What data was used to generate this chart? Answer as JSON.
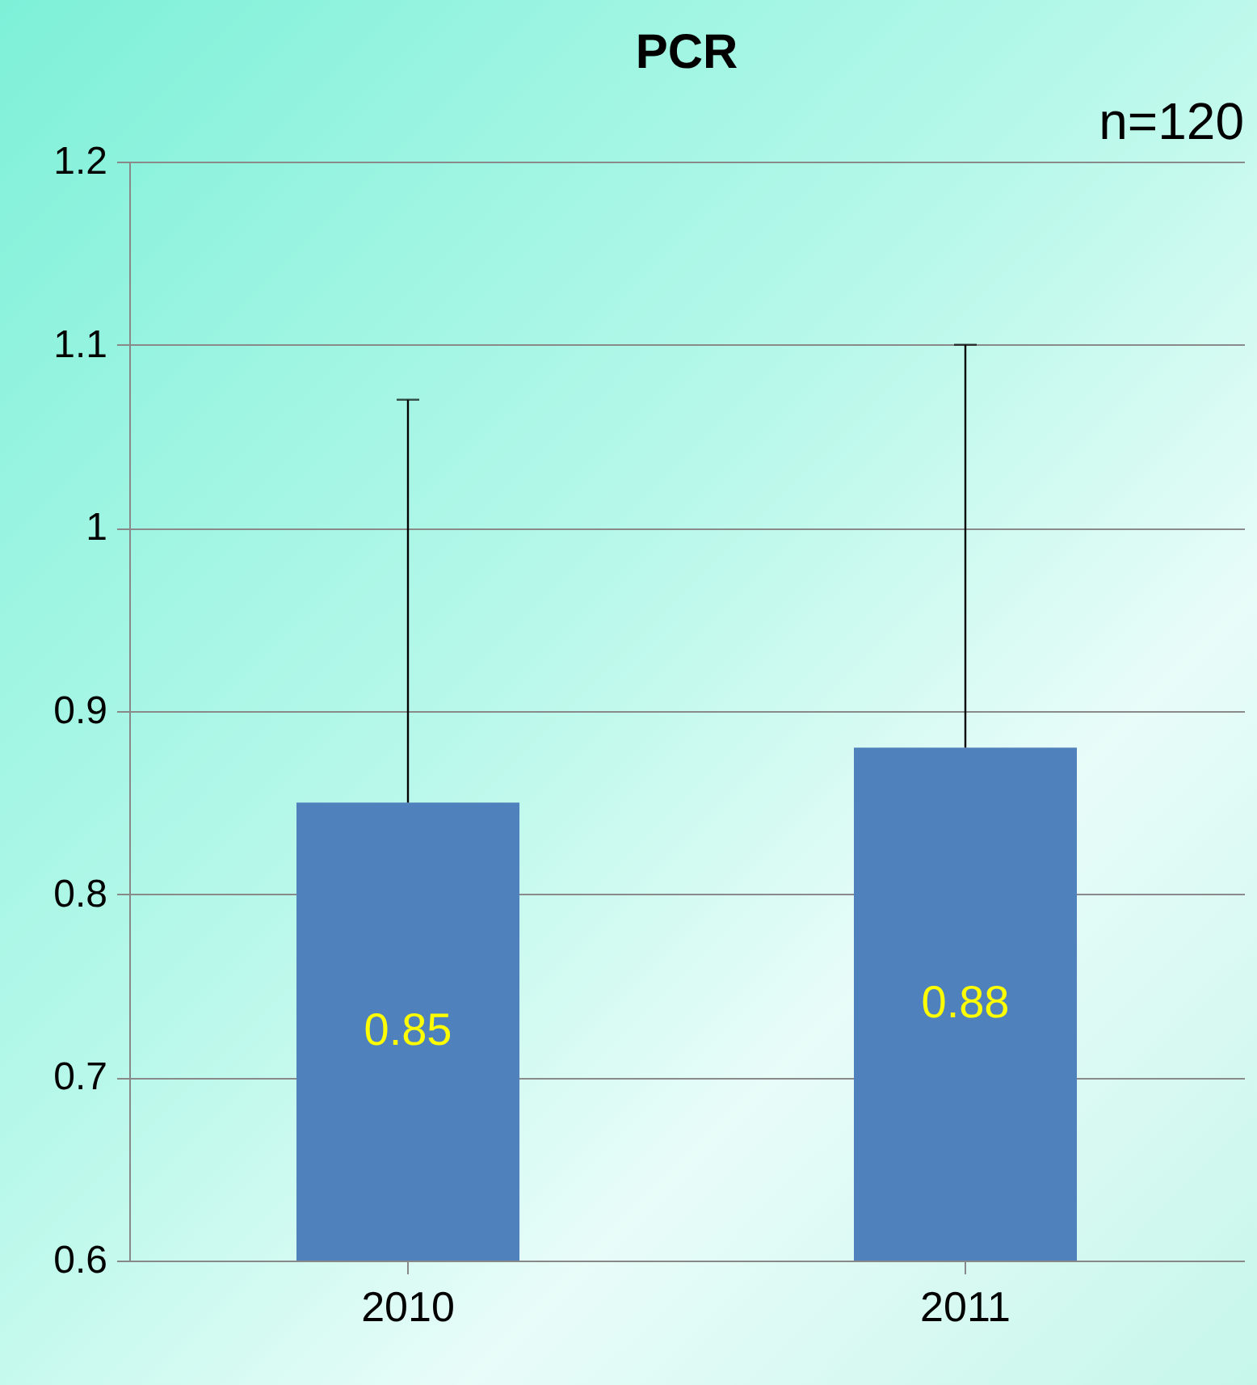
{
  "chart_data": {
    "type": "bar",
    "title": "PCR",
    "categories": [
      "2010",
      "2011"
    ],
    "series": [
      {
        "color": "#4f81bd",
        "values": [
          0.85,
          0.88
        ],
        "errors": [
          [
            0.85,
            1.07
          ],
          [
            0.88,
            1.1
          ]
        ]
      }
    ],
    "data_labels": true,
    "ylim": [
      0.6,
      1.2
    ],
    "yticks": [
      0.6,
      0.7,
      0.8,
      0.9,
      1,
      1.1,
      1.2
    ],
    "grid": "y",
    "annotations": [
      "n=120"
    ]
  }
}
